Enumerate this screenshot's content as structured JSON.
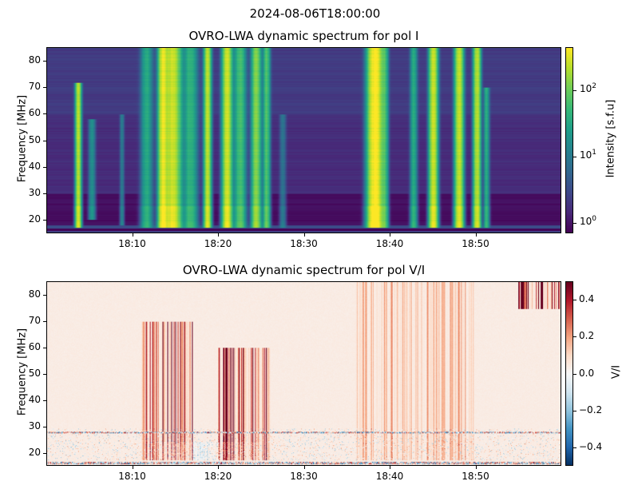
{
  "suptitle": "2024-08-06T18:00:00",
  "chart_data": [
    {
      "type": "heatmap",
      "title": "OVRO-LWA dynamic spectrum for pol I",
      "xlabel": "",
      "ylabel": "Frequency [MHz]",
      "xlim_minutes_after_18": [
        0,
        60
      ],
      "ylim": [
        15,
        85
      ],
      "xticks": [
        {
          "v": 10,
          "label": "18:10"
        },
        {
          "v": 20,
          "label": "18:20"
        },
        {
          "v": 30,
          "label": "18:30"
        },
        {
          "v": 40,
          "label": "18:40"
        },
        {
          "v": 50,
          "label": "18:50"
        }
      ],
      "yticks": [
        {
          "v": 20,
          "label": "20"
        },
        {
          "v": 30,
          "label": "30"
        },
        {
          "v": 40,
          "label": "40"
        },
        {
          "v": 50,
          "label": "50"
        },
        {
          "v": 60,
          "label": "60"
        },
        {
          "v": 70,
          "label": "70"
        },
        {
          "v": 80,
          "label": "80"
        }
      ],
      "colorbar": {
        "label": "Intensity [s.f.u]",
        "scale": "log",
        "range": [
          0.7,
          450
        ],
        "colormap": "viridis",
        "ticks": [
          {
            "v": 1,
            "base": "10",
            "exp": "0"
          },
          {
            "v": 10,
            "base": "10",
            "exp": "1"
          },
          {
            "v": 100,
            "base": "10",
            "exp": "2"
          }
        ]
      },
      "bursts": [
        {
          "t": 3.6,
          "w": 0.25,
          "fmin": 17,
          "fmax": 72,
          "peak": 200
        },
        {
          "t": 5.2,
          "w": 0.3,
          "fmin": 20,
          "fmax": 58,
          "peak": 15
        },
        {
          "t": 8.7,
          "w": 0.2,
          "fmin": 18,
          "fmax": 60,
          "peak": 8
        },
        {
          "t": 11.6,
          "w": 0.5,
          "fmin": 17,
          "fmax": 85,
          "peak": 30
        },
        {
          "t": 13.5,
          "w": 0.4,
          "fmin": 17,
          "fmax": 85,
          "peak": 300
        },
        {
          "t": 14.6,
          "w": 0.7,
          "fmin": 17,
          "fmax": 85,
          "peak": 250
        },
        {
          "t": 16.7,
          "w": 0.6,
          "fmin": 17,
          "fmax": 85,
          "peak": 40
        },
        {
          "t": 18.7,
          "w": 0.3,
          "fmin": 17,
          "fmax": 85,
          "peak": 200
        },
        {
          "t": 21.0,
          "w": 0.4,
          "fmin": 17,
          "fmax": 85,
          "peak": 250
        },
        {
          "t": 22.5,
          "w": 0.5,
          "fmin": 17,
          "fmax": 85,
          "peak": 60
        },
        {
          "t": 24.4,
          "w": 0.4,
          "fmin": 17,
          "fmax": 85,
          "peak": 120
        },
        {
          "t": 25.6,
          "w": 0.3,
          "fmin": 17,
          "fmax": 85,
          "peak": 60
        },
        {
          "t": 27.5,
          "w": 0.3,
          "fmin": 17,
          "fmax": 60,
          "peak": 6
        },
        {
          "t": 38.3,
          "w": 0.6,
          "fmin": 17,
          "fmax": 85,
          "peak": 450
        },
        {
          "t": 39.4,
          "w": 0.3,
          "fmin": 17,
          "fmax": 85,
          "peak": 60
        },
        {
          "t": 42.8,
          "w": 0.3,
          "fmin": 17,
          "fmax": 85,
          "peak": 30
        },
        {
          "t": 45.1,
          "w": 0.35,
          "fmin": 17,
          "fmax": 85,
          "peak": 250
        },
        {
          "t": 48.1,
          "w": 0.35,
          "fmin": 17,
          "fmax": 85,
          "peak": 250
        },
        {
          "t": 50.2,
          "w": 0.3,
          "fmin": 17,
          "fmax": 85,
          "peak": 200
        },
        {
          "t": 51.3,
          "w": 0.25,
          "fmin": 17,
          "fmax": 70,
          "peak": 30
        }
      ]
    },
    {
      "type": "heatmap",
      "title": "OVRO-LWA dynamic spectrum for pol V/I",
      "xlabel": "",
      "ylabel": "Frequency [MHz]",
      "xlim_minutes_after_18": [
        0,
        60
      ],
      "ylim": [
        15,
        85
      ],
      "xticks": [
        {
          "v": 10,
          "label": "18:10"
        },
        {
          "v": 20,
          "label": "18:20"
        },
        {
          "v": 30,
          "label": "18:30"
        },
        {
          "v": 40,
          "label": "18:40"
        },
        {
          "v": 50,
          "label": "18:50"
        }
      ],
      "yticks": [
        {
          "v": 20,
          "label": "20"
        },
        {
          "v": 30,
          "label": "30"
        },
        {
          "v": 40,
          "label": "40"
        },
        {
          "v": 50,
          "label": "50"
        },
        {
          "v": 60,
          "label": "60"
        },
        {
          "v": 70,
          "label": "70"
        },
        {
          "v": 80,
          "label": "80"
        }
      ],
      "colorbar": {
        "label": "V/I",
        "scale": "linear",
        "range": [
          -0.5,
          0.5
        ],
        "colormap": "RdBu_r",
        "ticks": [
          {
            "v": -0.4,
            "label": "−0.4"
          },
          {
            "v": -0.2,
            "label": "−0.2"
          },
          {
            "v": 0,
            "label": "0.0"
          },
          {
            "v": 0.2,
            "label": "0.2"
          },
          {
            "v": 0.4,
            "label": "0.4"
          }
        ]
      },
      "regions": [
        {
          "t0": 11,
          "t1": 17,
          "fmin": 17,
          "fmax": 70,
          "vi": 0.35
        },
        {
          "t0": 20,
          "t1": 26,
          "fmin": 17,
          "fmax": 60,
          "vi": 0.4
        },
        {
          "t0": 13,
          "t1": 25,
          "fmin": 17,
          "fmax": 24,
          "vi": -0.2
        },
        {
          "t0": 55,
          "t1": 60,
          "fmin": 75,
          "fmax": 85,
          "vi": 0.5
        },
        {
          "t0": 36,
          "t1": 50,
          "fmin": 17,
          "fmax": 85,
          "vi": 0.12
        }
      ]
    }
  ]
}
